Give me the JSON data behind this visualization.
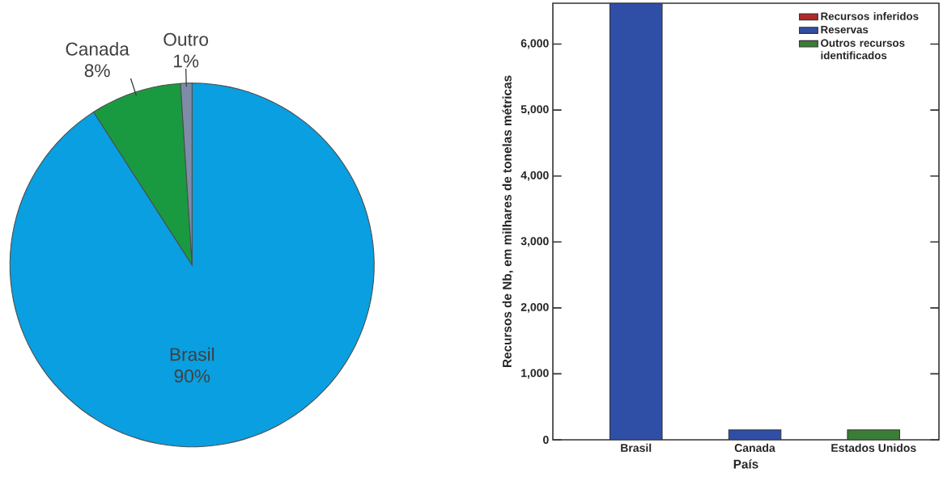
{
  "chart_data": [
    {
      "type": "pie",
      "categories": [
        "Brasil",
        "Canada",
        "Outro"
      ],
      "values": [
        90,
        8,
        1
      ],
      "colors": [
        "#0a9fe0",
        "#1a9a40",
        "#7f8ca8"
      ],
      "value_labels": [
        "90%",
        "8%",
        "1%"
      ]
    },
    {
      "type": "bar",
      "stacked": true,
      "categories": [
        "Brasil",
        "Canada",
        "Estados Unidos"
      ],
      "xlabel": "País",
      "ylabel": "Recursos de Nb, em milhares de tonelas métricas",
      "legend": "top right",
      "ylim": [
        0,
        6620
      ],
      "yticks": [
        {
          "value": 0,
          "label": "0"
        },
        {
          "value": 1000,
          "label": "1,000"
        },
        {
          "value": 2000,
          "label": "2,000"
        },
        {
          "value": 3000,
          "label": "3,000"
        },
        {
          "value": 4000,
          "label": "4,000"
        },
        {
          "value": 5000,
          "label": "5,000"
        },
        {
          "value": 6000,
          "label": "6,000"
        }
      ],
      "series": [
        {
          "name": "Recursos inferidos",
          "color": "#b02a2a",
          "values": [
            null,
            null,
            null
          ]
        },
        {
          "name": "Reservas",
          "color": "#2f4fa6",
          "values": [
            6620,
            150,
            null
          ]
        },
        {
          "name": "Outros recursos identificados",
          "color": "#3a7d35",
          "values": [
            null,
            null,
            150
          ]
        }
      ]
    }
  ]
}
